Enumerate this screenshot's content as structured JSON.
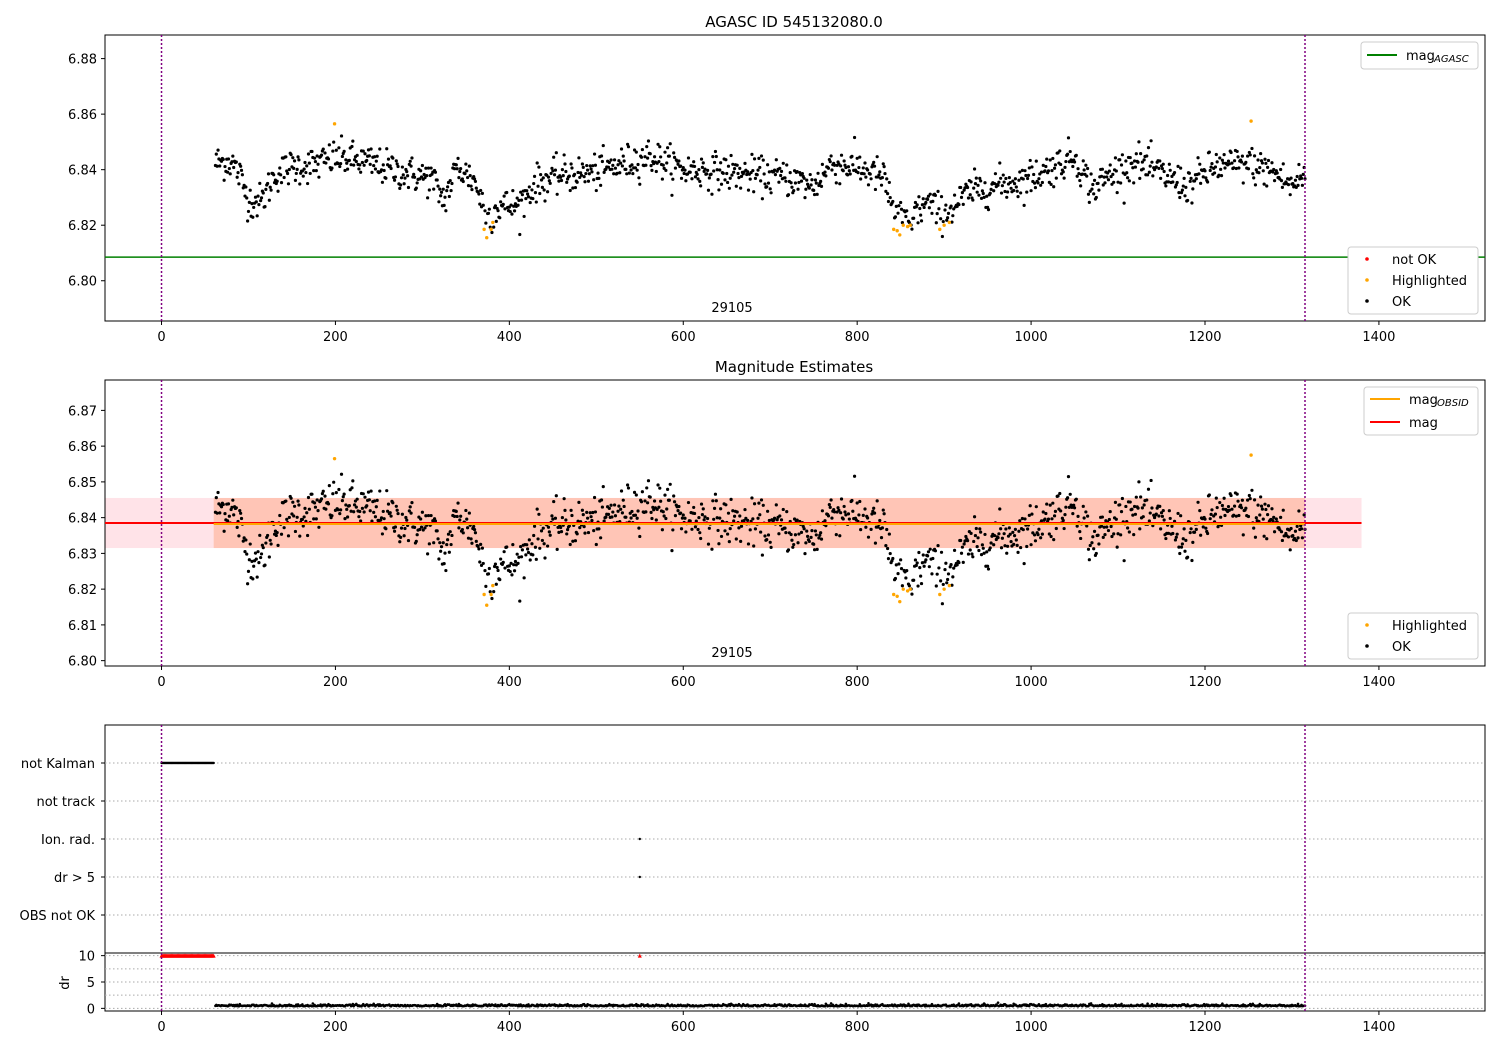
{
  "figure": {
    "title": "AGASC ID 545132080.0"
  },
  "chart_data": [
    {
      "type": "scatter",
      "panel": "agasc",
      "title": "AGASC ID 545132080.0",
      "annotation": "29105",
      "xlim": [
        -65,
        1522
      ],
      "ylim": [
        6.7855,
        6.8885
      ],
      "x_ticks": [
        0,
        200,
        400,
        600,
        800,
        1000,
        1200,
        1400
      ],
      "y_ticks": [
        6.8,
        6.82,
        6.84,
        6.86,
        6.88
      ],
      "vlines": [
        0,
        1315
      ],
      "hlines": [
        {
          "name": "mag_AGASC",
          "value": 6.8085,
          "color": "#008000"
        }
      ],
      "legend_lines": [
        {
          "label": "mag",
          "sub": "AGASC",
          "color": "#008000"
        }
      ],
      "legend_points": [
        {
          "label": "not OK",
          "color": "#ff0000"
        },
        {
          "label": "Highlighted",
          "color": "#ffa500"
        },
        {
          "label": "OK",
          "color": "#000000"
        }
      ],
      "series_ref": "mag_samples"
    },
    {
      "type": "scatter",
      "panel": "estimates",
      "title": "Magnitude Estimates",
      "annotation": "29105",
      "xlim": [
        -65,
        1522
      ],
      "ylim": [
        6.7985,
        6.8785
      ],
      "x_ticks": [
        0,
        200,
        400,
        600,
        800,
        1000,
        1200,
        1400
      ],
      "y_ticks": [
        6.8,
        6.81,
        6.82,
        6.83,
        6.84,
        6.85,
        6.86,
        6.87
      ],
      "vlines": [
        0,
        1315
      ],
      "mag": 6.8385,
      "mag_obsid": 6.8385,
      "band_pink": {
        "range": [
          6.8315,
          6.8455
        ],
        "x": [
          -65,
          1380
        ],
        "color": "#ffc0cb"
      },
      "band_orange": {
        "range": [
          6.8315,
          6.8455
        ],
        "x": [
          60,
          1315
        ],
        "color": "#ffa07a"
      },
      "legend_lines": [
        {
          "label": "mag",
          "sub": "OBSID",
          "color": "#ffa500"
        },
        {
          "label": "mag",
          "sub": "",
          "color": "#ff0000"
        }
      ],
      "legend_points": [
        {
          "label": "Highlighted",
          "color": "#ffa500"
        },
        {
          "label": "OK",
          "color": "#000000"
        }
      ],
      "series_ref": "mag_samples"
    },
    {
      "type": "scatter",
      "panel": "flags",
      "xlim": [
        -65,
        1522
      ],
      "x_ticks": [
        0,
        200,
        400,
        600,
        800,
        1000,
        1200,
        1400
      ],
      "categories": [
        "not Kalman",
        "not track",
        "Ion. rad.",
        "dr > 5",
        "OBS not OK"
      ],
      "flag_points": [
        {
          "category": "not Kalman",
          "x_range": [
            0,
            60
          ],
          "step": 1
        },
        {
          "category": "Ion. rad.",
          "x": [
            550
          ]
        },
        {
          "category": "dr > 5",
          "x": [
            550
          ]
        }
      ],
      "vlines": [
        0,
        1315
      ]
    },
    {
      "type": "scatter",
      "panel": "dr",
      "ylabel": "dr",
      "xlim": [
        -65,
        1522
      ],
      "ylim": [
        -0.5,
        10.5
      ],
      "y_ticks": [
        0,
        5,
        10
      ],
      "x_ticks": [
        0,
        200,
        400,
        600,
        800,
        1000,
        1200,
        1400
      ],
      "clipped_markers": {
        "x_range": [
          0,
          60
        ],
        "x_extra": [
          550
        ],
        "value": 10,
        "color": "#ff0000"
      },
      "dr_baseline": {
        "x_range": [
          62,
          1315
        ],
        "value": 0.4,
        "color": "#000000"
      },
      "vlines": [
        0,
        1315
      ]
    }
  ],
  "mag_samples": {
    "comment": "Smoothed trend of the star magnitude vs sample index (0 to 1315), points scattered about it; orange points are highlighted dips.",
    "x_start": 62,
    "x_end": 1315,
    "trend": [
      [
        62,
        6.8425
      ],
      [
        80,
        6.843
      ],
      [
        90,
        6.838
      ],
      [
        100,
        6.829
      ],
      [
        115,
        6.8285
      ],
      [
        130,
        6.838
      ],
      [
        150,
        6.841
      ],
      [
        180,
        6.842
      ],
      [
        200,
        6.8445
      ],
      [
        230,
        6.843
      ],
      [
        260,
        6.8405
      ],
      [
        290,
        6.838
      ],
      [
        310,
        6.837
      ],
      [
        325,
        6.829
      ],
      [
        340,
        6.841
      ],
      [
        360,
        6.836
      ],
      [
        375,
        6.823
      ],
      [
        390,
        6.827
      ],
      [
        410,
        6.827
      ],
      [
        430,
        6.835
      ],
      [
        460,
        6.838
      ],
      [
        500,
        6.839
      ],
      [
        530,
        6.842
      ],
      [
        560,
        6.845
      ],
      [
        600,
        6.84
      ],
      [
        640,
        6.8395
      ],
      [
        680,
        6.838
      ],
      [
        720,
        6.837
      ],
      [
        750,
        6.834
      ],
      [
        770,
        6.842
      ],
      [
        800,
        6.841
      ],
      [
        830,
        6.837
      ],
      [
        845,
        6.8235
      ],
      [
        860,
        6.8225
      ],
      [
        880,
        6.828
      ],
      [
        900,
        6.824
      ],
      [
        930,
        6.832
      ],
      [
        960,
        6.8345
      ],
      [
        990,
        6.836
      ],
      [
        1020,
        6.84
      ],
      [
        1050,
        6.845
      ],
      [
        1070,
        6.833
      ],
      [
        1090,
        6.838
      ],
      [
        1120,
        6.843
      ],
      [
        1160,
        6.837
      ],
      [
        1180,
        6.834
      ],
      [
        1210,
        6.841
      ],
      [
        1250,
        6.842
      ],
      [
        1280,
        6.839
      ],
      [
        1300,
        6.834
      ],
      [
        1315,
        6.8385
      ]
    ],
    "highlighted": [
      [
        199,
        6.8565
      ],
      [
        371,
        6.8185
      ],
      [
        374,
        6.8155
      ],
      [
        379,
        6.8185
      ],
      [
        381,
        6.821
      ],
      [
        842,
        6.8185
      ],
      [
        846,
        6.818
      ],
      [
        849,
        6.8165
      ],
      [
        853,
        6.82
      ],
      [
        858,
        6.8195
      ],
      [
        861,
        6.82
      ],
      [
        895,
        6.8185
      ],
      [
        900,
        6.82
      ],
      [
        906,
        6.821
      ],
      [
        1253,
        6.8575
      ]
    ]
  }
}
